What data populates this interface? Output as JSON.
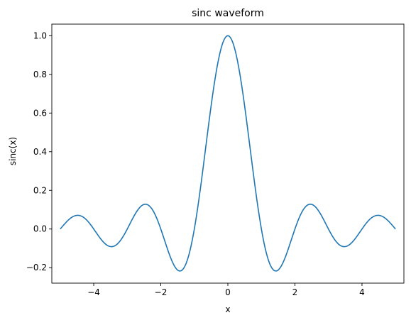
{
  "chart_data": {
    "type": "line",
    "title": "sinc waveform",
    "xlabel": "x",
    "ylabel": "sinc(x)",
    "xlim": [
      -5.25,
      5.25
    ],
    "ylim": [
      -0.28,
      1.06
    ],
    "function": "sin(pi*x)/(pi*x)",
    "x_range": [
      -5,
      5
    ],
    "grid": false,
    "x_ticks": [
      {
        "value": -4,
        "label": "−4"
      },
      {
        "value": -2,
        "label": "−2"
      },
      {
        "value": 0,
        "label": "0"
      },
      {
        "value": 2,
        "label": "2"
      },
      {
        "value": 4,
        "label": "4"
      }
    ],
    "y_ticks": [
      {
        "value": -0.2,
        "label": "−0.2"
      },
      {
        "value": 0.0,
        "label": "0.0"
      },
      {
        "value": 0.2,
        "label": "0.2"
      },
      {
        "value": 0.4,
        "label": "0.4"
      },
      {
        "value": 0.6,
        "label": "0.6"
      },
      {
        "value": 0.8,
        "label": "0.8"
      },
      {
        "value": 1.0,
        "label": "1.0"
      }
    ],
    "series": [
      {
        "color": "#1f77b4",
        "x": [
          -5.0,
          -4.75,
          -4.5,
          -4.25,
          -4.0,
          -3.75,
          -3.5,
          -3.25,
          -3.0,
          -2.75,
          -2.5,
          -2.25,
          -2.0,
          -1.75,
          -1.5,
          -1.25,
          -1.0,
          -0.75,
          -0.5,
          -0.25,
          0.0,
          0.25,
          0.5,
          0.75,
          1.0,
          1.25,
          1.5,
          1.75,
          2.0,
          2.25,
          2.5,
          2.75,
          3.0,
          3.25,
          3.5,
          3.75,
          4.0,
          4.25,
          4.5,
          4.75,
          5.0
        ],
        "y": [
          0.0,
          0.047,
          0.071,
          0.053,
          0.0,
          -0.06,
          -0.091,
          -0.069,
          0.0,
          0.082,
          0.127,
          0.1,
          0.0,
          -0.129,
          -0.212,
          -0.18,
          0.0,
          0.3,
          0.637,
          0.9,
          1.0,
          0.9,
          0.637,
          0.3,
          0.0,
          -0.18,
          -0.212,
          -0.129,
          0.0,
          0.1,
          0.127,
          0.082,
          0.0,
          -0.069,
          -0.091,
          -0.06,
          0.0,
          0.053,
          0.071,
          0.047,
          0.0
        ]
      }
    ]
  }
}
